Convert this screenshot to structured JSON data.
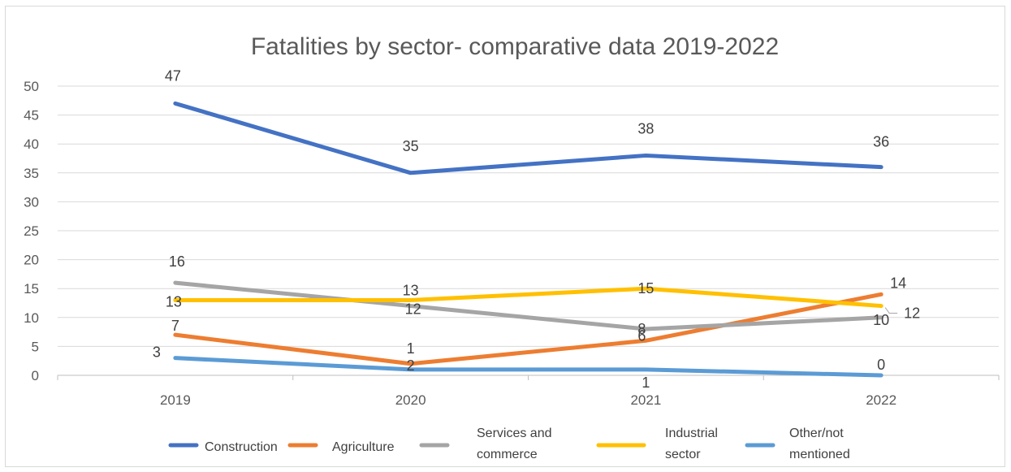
{
  "chart_data": {
    "type": "line",
    "title": "Fatalities by sector- comparative data 2019-2022",
    "categories": [
      "2019",
      "2020",
      "2021",
      "2022"
    ],
    "ylim": [
      0,
      50
    ],
    "yticks": [
      "0",
      "5",
      "10",
      "15",
      "20",
      "25",
      "30",
      "35",
      "40",
      "45",
      "50"
    ],
    "grid": true,
    "legend_position": "bottom",
    "series": [
      {
        "name": "Construction",
        "color": "#4472C4",
        "values": [
          47,
          35,
          38,
          36
        ]
      },
      {
        "name": "Agriculture",
        "color": "#ED7D31",
        "values": [
          7,
          2,
          6,
          14
        ]
      },
      {
        "name": "Services and commerce",
        "color": "#A5A5A5",
        "values": [
          16,
          12,
          8,
          10
        ]
      },
      {
        "name": "Industrial sector",
        "color": "#FFC000",
        "values": [
          13,
          13,
          15,
          12
        ]
      },
      {
        "name": "Other/not mentioned",
        "color": "#5B9BD5",
        "values": [
          3,
          1,
          1,
          0
        ]
      }
    ]
  }
}
